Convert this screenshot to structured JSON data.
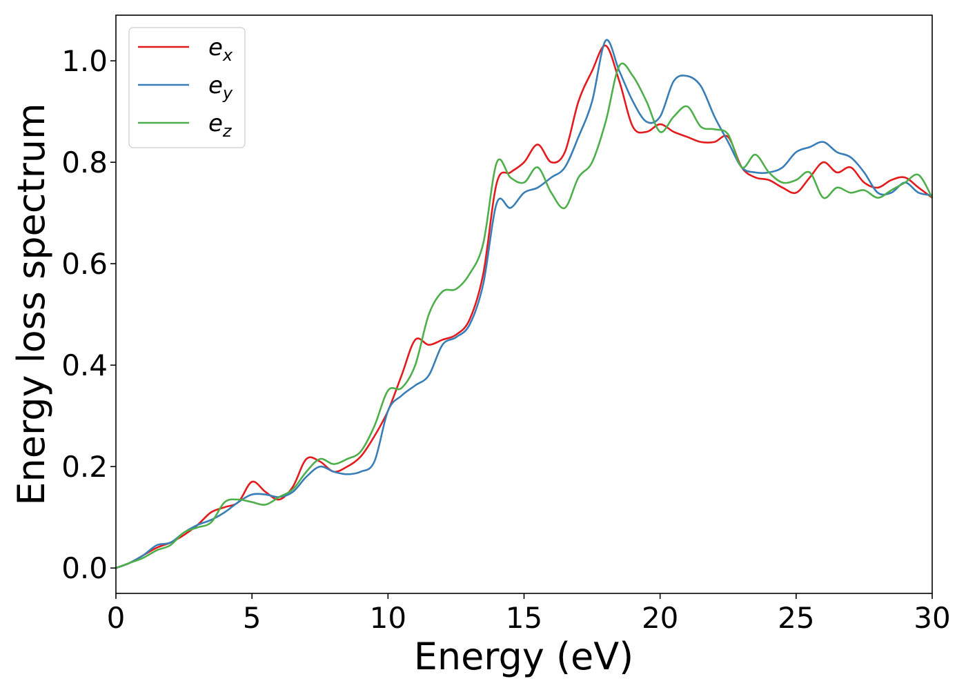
{
  "chart_data": {
    "type": "line",
    "title": "",
    "xlabel": "Energy (eV)",
    "ylabel": "Energy loss spectrum",
    "xlim": [
      0,
      30
    ],
    "ylim": [
      -0.05,
      1.09
    ],
    "xticks": [
      0,
      5,
      10,
      15,
      20,
      25,
      30
    ],
    "xtick_labels": [
      "0",
      "5",
      "10",
      "15",
      "20",
      "25",
      "30"
    ],
    "yticks": [
      0.0,
      0.2,
      0.4,
      0.6,
      0.8,
      1.0
    ],
    "ytick_labels": [
      "0.0",
      "0.2",
      "0.4",
      "0.6",
      "0.8",
      "1.0"
    ],
    "grid": false,
    "legend_position": "top-left",
    "series": [
      {
        "name": "e_x",
        "label_base": "e",
        "label_sub": "x",
        "color": "#e41a1c",
        "x": [
          0,
          0.5,
          1,
          1.5,
          2,
          2.5,
          3,
          3.5,
          4,
          4.5,
          5,
          5.5,
          6,
          6.5,
          7,
          7.5,
          8,
          8.5,
          9,
          9.5,
          10,
          10.5,
          11,
          11.5,
          12,
          12.5,
          13,
          13.5,
          14,
          14.5,
          15,
          15.5,
          16,
          16.5,
          17,
          17.5,
          18,
          18.5,
          19,
          19.5,
          20,
          20.5,
          21,
          21.5,
          22,
          22.5,
          23,
          23.5,
          24,
          24.5,
          25,
          25.5,
          26,
          26.5,
          27,
          27.5,
          28,
          28.5,
          29,
          29.5,
          30
        ],
        "y": [
          0.0,
          0.01,
          0.025,
          0.04,
          0.05,
          0.065,
          0.085,
          0.11,
          0.12,
          0.13,
          0.17,
          0.15,
          0.135,
          0.16,
          0.215,
          0.21,
          0.19,
          0.2,
          0.22,
          0.26,
          0.31,
          0.38,
          0.45,
          0.44,
          0.45,
          0.46,
          0.49,
          0.58,
          0.76,
          0.78,
          0.8,
          0.835,
          0.8,
          0.82,
          0.92,
          0.98,
          1.03,
          0.96,
          0.87,
          0.86,
          0.875,
          0.86,
          0.85,
          0.84,
          0.84,
          0.85,
          0.79,
          0.77,
          0.765,
          0.75,
          0.74,
          0.77,
          0.8,
          0.78,
          0.79,
          0.76,
          0.75,
          0.765,
          0.77,
          0.75,
          0.73
        ]
      },
      {
        "name": "e_y",
        "label_base": "e",
        "label_sub": "y",
        "color": "#377eb8",
        "x": [
          0,
          0.5,
          1,
          1.5,
          2,
          2.5,
          3,
          3.5,
          4,
          4.5,
          5,
          5.5,
          6,
          6.5,
          7,
          7.5,
          8,
          8.5,
          9,
          9.5,
          10,
          10.5,
          11,
          11.5,
          12,
          12.5,
          13,
          13.5,
          14,
          14.5,
          15,
          15.5,
          16,
          16.5,
          17,
          17.5,
          18,
          18.5,
          19,
          19.5,
          20,
          20.5,
          21,
          21.5,
          22,
          22.5,
          23,
          23.5,
          24,
          24.5,
          25,
          25.5,
          26,
          26.5,
          27,
          27.5,
          28,
          28.5,
          29,
          29.5,
          30
        ],
        "y": [
          0.0,
          0.01,
          0.025,
          0.045,
          0.05,
          0.07,
          0.085,
          0.095,
          0.11,
          0.13,
          0.145,
          0.145,
          0.14,
          0.15,
          0.18,
          0.2,
          0.19,
          0.185,
          0.19,
          0.21,
          0.31,
          0.34,
          0.36,
          0.38,
          0.44,
          0.455,
          0.48,
          0.56,
          0.72,
          0.71,
          0.74,
          0.75,
          0.77,
          0.79,
          0.85,
          0.92,
          1.04,
          0.98,
          0.92,
          0.88,
          0.89,
          0.96,
          0.97,
          0.95,
          0.89,
          0.84,
          0.79,
          0.78,
          0.78,
          0.79,
          0.82,
          0.83,
          0.84,
          0.82,
          0.81,
          0.78,
          0.74,
          0.74,
          0.76,
          0.74,
          0.735
        ]
      },
      {
        "name": "e_z",
        "label_base": "e",
        "label_sub": "z",
        "color": "#4daf4a",
        "x": [
          0,
          0.5,
          1,
          1.5,
          2,
          2.5,
          3,
          3.5,
          4,
          4.5,
          5,
          5.5,
          6,
          6.5,
          7,
          7.5,
          8,
          8.5,
          9,
          9.5,
          10,
          10.5,
          11,
          11.5,
          12,
          12.5,
          13,
          13.5,
          14,
          14.5,
          15,
          15.5,
          16,
          16.5,
          17,
          17.5,
          18,
          18.5,
          19,
          19.5,
          20,
          20.5,
          21,
          21.5,
          22,
          22.5,
          23,
          23.5,
          24,
          24.5,
          25,
          25.5,
          26,
          26.5,
          27,
          27.5,
          28,
          28.5,
          29,
          29.5,
          30
        ],
        "y": [
          0.0,
          0.01,
          0.02,
          0.035,
          0.045,
          0.07,
          0.08,
          0.09,
          0.13,
          0.135,
          0.13,
          0.125,
          0.14,
          0.155,
          0.19,
          0.215,
          0.205,
          0.215,
          0.23,
          0.28,
          0.35,
          0.355,
          0.4,
          0.5,
          0.545,
          0.55,
          0.58,
          0.64,
          0.8,
          0.77,
          0.76,
          0.79,
          0.74,
          0.71,
          0.77,
          0.8,
          0.88,
          0.99,
          0.97,
          0.92,
          0.86,
          0.89,
          0.91,
          0.87,
          0.865,
          0.855,
          0.79,
          0.815,
          0.78,
          0.76,
          0.765,
          0.78,
          0.73,
          0.75,
          0.74,
          0.745,
          0.73,
          0.745,
          0.76,
          0.775,
          0.73
        ]
      }
    ]
  }
}
